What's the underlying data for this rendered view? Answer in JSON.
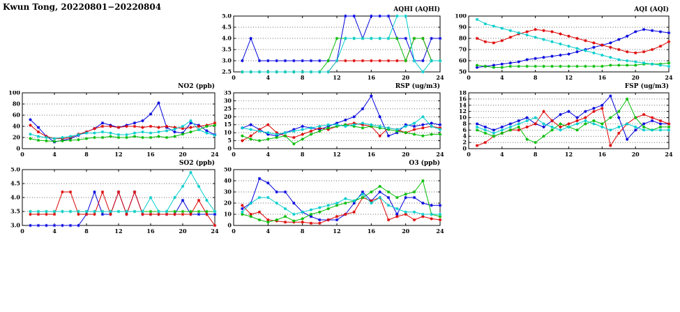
{
  "page_title": "Kwun Tong, 20220801−20220804",
  "hours": [
    1,
    2,
    3,
    4,
    5,
    6,
    7,
    8,
    9,
    10,
    11,
    12,
    13,
    14,
    15,
    16,
    17,
    18,
    19,
    20,
    21,
    22,
    23,
    24
  ],
  "series_colors": {
    "blue": "#0000dd",
    "red": "#dd0000",
    "green": "#00bb00",
    "cyan": "#00cccc"
  },
  "chart_data": [
    {
      "id": "aqhi",
      "type": "line",
      "title": "AQHI (AQHI)",
      "xlim": [
        0,
        24
      ],
      "xticks": [
        0,
        4,
        8,
        12,
        16,
        20,
        24
      ],
      "ylim": [
        2.5,
        5.0
      ],
      "yticks": [
        2.5,
        3.0,
        3.5,
        4.0,
        4.5,
        5.0
      ],
      "ytick_labels": [
        "2.5",
        "3.0",
        "3.5",
        "4.0",
        "4.5",
        "5.0"
      ],
      "grid": true,
      "legend": "none",
      "series": [
        {
          "name": "series-1",
          "color": "#0000dd",
          "values": [
            3,
            4,
            3,
            3,
            3,
            3,
            3,
            3,
            3,
            3,
            3,
            3,
            5,
            5,
            4,
            5,
            5,
            5,
            4,
            4,
            3,
            3,
            4,
            4
          ]
        },
        {
          "name": "series-2",
          "color": "#dd0000",
          "values": [
            2.5,
            2.5,
            2.5,
            2.5,
            2.5,
            2.5,
            2.5,
            2.5,
            2.5,
            2.5,
            2.5,
            3,
            3,
            3,
            3,
            3,
            3,
            3,
            3,
            3,
            4,
            4,
            3,
            3
          ]
        },
        {
          "name": "series-3",
          "color": "#00bb00",
          "values": [
            2.5,
            2.5,
            2.5,
            2.5,
            2.5,
            2.5,
            2.5,
            2.5,
            2.5,
            2.5,
            3,
            4,
            4,
            4,
            4,
            4,
            4,
            4,
            4,
            3,
            4,
            4,
            3,
            3
          ]
        },
        {
          "name": "series-4",
          "color": "#00cccc",
          "values": [
            2.5,
            2.5,
            2.5,
            2.5,
            2.5,
            2.5,
            2.5,
            2.5,
            2.5,
            2.5,
            2.5,
            3,
            4,
            4,
            4,
            4,
            4,
            4,
            5,
            5,
            3,
            2.5,
            3,
            3
          ]
        }
      ]
    },
    {
      "id": "aqi",
      "type": "line",
      "title": "AQI (AQI)",
      "xlim": [
        0,
        24
      ],
      "xticks": [
        0,
        4,
        8,
        12,
        16,
        20,
        24
      ],
      "ylim": [
        50,
        100
      ],
      "yticks": [
        50,
        60,
        70,
        80,
        90,
        100
      ],
      "ytick_labels": [
        "50",
        "60",
        "70",
        "80",
        "90",
        "100"
      ],
      "grid": true,
      "legend": "none",
      "series": [
        {
          "name": "series-1",
          "color": "#0000dd",
          "values": [
            54,
            55,
            56,
            57,
            58,
            59,
            61,
            62,
            63,
            64,
            65,
            66,
            68,
            70,
            72,
            74,
            76,
            79,
            82,
            86,
            88,
            87,
            86,
            85
          ]
        },
        {
          "name": "series-2",
          "color": "#dd0000",
          "values": [
            80,
            77,
            76,
            78,
            81,
            84,
            86,
            88,
            87,
            86,
            84,
            82,
            80,
            78,
            76,
            74,
            72,
            70,
            68,
            67,
            68,
            70,
            73,
            77
          ]
        },
        {
          "name": "series-3",
          "color": "#00bb00",
          "values": [
            56,
            55,
            54,
            54,
            55,
            55,
            55,
            55,
            55,
            55,
            55,
            55,
            55,
            55,
            55,
            55,
            56,
            56,
            56,
            56,
            57,
            57,
            57,
            58
          ]
        },
        {
          "name": "series-4",
          "color": "#00cccc",
          "values": [
            97,
            93,
            91,
            89,
            87,
            85,
            83,
            81,
            79,
            77,
            75,
            73,
            71,
            69,
            67,
            65,
            63,
            61,
            60,
            59,
            58,
            57,
            56,
            55
          ]
        }
      ]
    },
    {
      "id": "no2",
      "type": "line",
      "title": "NO2 (ppb)",
      "xlim": [
        0,
        24
      ],
      "xticks": [
        0,
        4,
        8,
        12,
        16,
        20,
        24
      ],
      "ylim": [
        0,
        100
      ],
      "yticks": [
        0,
        20,
        40,
        60,
        80,
        100
      ],
      "ytick_labels": [
        "0",
        "20",
        "40",
        "60",
        "80",
        "100"
      ],
      "grid": true,
      "legend": "none",
      "series": [
        {
          "name": "series-1",
          "color": "#0000dd",
          "values": [
            52,
            38,
            22,
            12,
            15,
            18,
            24,
            30,
            36,
            46,
            42,
            38,
            42,
            46,
            50,
            62,
            82,
            38,
            30,
            28,
            46,
            42,
            32,
            25
          ]
        },
        {
          "name": "series-2",
          "color": "#dd0000",
          "values": [
            42,
            30,
            22,
            18,
            18,
            20,
            26,
            30,
            36,
            40,
            40,
            38,
            40,
            40,
            38,
            40,
            38,
            40,
            38,
            36,
            38,
            40,
            42,
            46
          ]
        },
        {
          "name": "series-3",
          "color": "#00bb00",
          "values": [
            18,
            15,
            14,
            13,
            14,
            15,
            16,
            18,
            20,
            20,
            22,
            20,
            20,
            22,
            20,
            20,
            22,
            20,
            22,
            26,
            30,
            34,
            40,
            42
          ]
        },
        {
          "name": "series-4",
          "color": "#00cccc",
          "values": [
            26,
            22,
            20,
            18,
            20,
            22,
            25,
            28,
            28,
            30,
            28,
            25,
            25,
            28,
            30,
            28,
            30,
            32,
            35,
            40,
            50,
            34,
            28,
            24
          ]
        }
      ]
    },
    {
      "id": "rsp",
      "type": "line",
      "title": "RSP (ug/m3)",
      "xlim": [
        0,
        24
      ],
      "xticks": [
        0,
        4,
        8,
        12,
        16,
        20,
        24
      ],
      "ylim": [
        0,
        35
      ],
      "yticks": [
        0,
        5,
        10,
        15,
        20,
        25,
        30,
        35
      ],
      "ytick_labels": [
        "0",
        "5",
        "10",
        "15",
        "20",
        "25",
        "30",
        "35"
      ],
      "grid": true,
      "legend": "none",
      "series": [
        {
          "name": "series-1",
          "color": "#0000dd",
          "values": [
            13,
            15,
            12,
            9,
            8,
            10,
            12,
            14,
            13,
            12,
            14,
            16,
            18,
            20,
            25,
            33,
            20,
            8,
            10,
            15,
            14,
            15,
            16,
            15
          ]
        },
        {
          "name": "series-2",
          "color": "#dd0000",
          "values": [
            5,
            8,
            12,
            15,
            10,
            8,
            7,
            9,
            11,
            13,
            12,
            14,
            15,
            16,
            15,
            14,
            8,
            13,
            12,
            10,
            12,
            13,
            14,
            13
          ]
        },
        {
          "name": "series-3",
          "color": "#00bb00",
          "values": [
            8,
            6,
            5,
            6,
            7,
            8,
            3,
            6,
            9,
            11,
            13,
            14,
            15,
            14,
            13,
            14,
            13,
            12,
            11,
            10,
            9,
            8,
            9,
            9
          ]
        },
        {
          "name": "series-4",
          "color": "#00cccc",
          "values": [
            13,
            12,
            11,
            10,
            9,
            10,
            11,
            12,
            13,
            14,
            15,
            15,
            14,
            15,
            16,
            15,
            14,
            13,
            12,
            14,
            16,
            20,
            14,
            12
          ]
        }
      ]
    },
    {
      "id": "fsp",
      "type": "line",
      "title": "FSP (ug/m3)",
      "xlim": [
        0,
        24
      ],
      "xticks": [
        0,
        4,
        8,
        12,
        16,
        20,
        24
      ],
      "ylim": [
        0,
        18
      ],
      "yticks": [
        0,
        2,
        4,
        6,
        8,
        10,
        12,
        14,
        16,
        18
      ],
      "ytick_labels": [
        "0",
        "2",
        "4",
        "6",
        "8",
        "10",
        "12",
        "14",
        "16",
        "18"
      ],
      "grid": true,
      "legend": "none",
      "series": [
        {
          "name": "series-1",
          "color": "#0000dd",
          "values": [
            8,
            7,
            6,
            7,
            8,
            9,
            10,
            8,
            7,
            9,
            11,
            12,
            10,
            12,
            13,
            14,
            17,
            10,
            3,
            6,
            8,
            9,
            8,
            8
          ]
        },
        {
          "name": "series-2",
          "color": "#dd0000",
          "values": [
            1,
            2,
            4,
            5,
            6,
            6,
            7,
            8,
            12,
            9,
            7,
            8,
            9,
            10,
            12,
            13,
            1,
            5,
            8,
            10,
            11,
            10,
            9,
            8
          ]
        },
        {
          "name": "series-3",
          "color": "#00bb00",
          "values": [
            6,
            5,
            4,
            5,
            6,
            7,
            3,
            2,
            4,
            6,
            8,
            7,
            6,
            8,
            9,
            8,
            10,
            12,
            16,
            10,
            7,
            6,
            7,
            7
          ]
        },
        {
          "name": "series-4",
          "color": "#00cccc",
          "values": [
            7,
            6,
            5,
            6,
            7,
            8,
            9,
            10,
            8,
            7,
            6,
            7,
            8,
            9,
            8,
            7,
            6,
            7,
            8,
            7,
            6,
            6,
            6,
            6
          ]
        }
      ]
    },
    {
      "id": "so2",
      "type": "line",
      "title": "SO2 (ppb)",
      "xlim": [
        0,
        24
      ],
      "xticks": [
        0,
        4,
        8,
        12,
        16,
        20,
        24
      ],
      "ylim": [
        3.0,
        5.0
      ],
      "yticks": [
        3.0,
        3.5,
        4.0,
        4.5,
        5.0
      ],
      "ytick_labels": [
        "3.0",
        "3.5",
        "4.0",
        "4.5",
        "5.0"
      ],
      "grid": true,
      "legend": "none",
      "series": [
        {
          "name": "series-1",
          "color": "#0000dd",
          "values": [
            3.0,
            3.0,
            3.0,
            3.0,
            3.0,
            3.0,
            3.0,
            3.4,
            4.2,
            3.4,
            3.4,
            4.2,
            3.4,
            4.2,
            3.4,
            3.4,
            3.4,
            3.4,
            3.4,
            3.9,
            3.4,
            3.4,
            3.4,
            3.4
          ]
        },
        {
          "name": "series-2",
          "color": "#dd0000",
          "values": [
            3.4,
            3.4,
            3.4,
            3.4,
            4.2,
            4.2,
            3.4,
            3.4,
            3.4,
            4.2,
            3.4,
            4.2,
            3.4,
            4.2,
            3.4,
            3.4,
            3.4,
            3.4,
            3.4,
            3.4,
            3.4,
            3.9,
            3.4,
            3.0
          ]
        },
        {
          "name": "series-3",
          "color": "#00bb00",
          "values": [
            3.5,
            3.5,
            3.5,
            3.5,
            3.5,
            3.5,
            3.5,
            3.5,
            3.5,
            3.5,
            3.5,
            3.5,
            3.5,
            3.5,
            3.5,
            3.5,
            3.5,
            3.5,
            3.5,
            3.5,
            3.5,
            3.5,
            3.5,
            3.5
          ]
        },
        {
          "name": "series-4",
          "color": "#00cccc",
          "values": [
            3.5,
            3.5,
            3.5,
            3.5,
            3.5,
            3.5,
            3.5,
            3.5,
            3.5,
            3.5,
            3.5,
            3.5,
            3.5,
            3.5,
            3.5,
            4.0,
            3.5,
            3.5,
            4.0,
            4.4,
            4.9,
            4.4,
            3.9,
            3.5
          ]
        }
      ]
    },
    {
      "id": "o3",
      "type": "line",
      "title": "O3 (ppb)",
      "xlim": [
        0,
        24
      ],
      "xticks": [
        0,
        4,
        8,
        12,
        16,
        20,
        24
      ],
      "ylim": [
        0,
        50
      ],
      "yticks": [
        0,
        10,
        20,
        30,
        40,
        50
      ],
      "ytick_labels": [
        "0",
        "10",
        "20",
        "30",
        "40",
        "50"
      ],
      "grid": true,
      "legend": "none",
      "series": [
        {
          "name": "series-1",
          "color": "#0000dd",
          "values": [
            15,
            20,
            42,
            38,
            30,
            30,
            20,
            12,
            8,
            5,
            5,
            5,
            10,
            20,
            30,
            22,
            30,
            25,
            10,
            25,
            25,
            20,
            18,
            18
          ]
        },
        {
          "name": "series-2",
          "color": "#dd0000",
          "values": [
            18,
            10,
            12,
            5,
            4,
            3,
            3,
            3,
            2,
            2,
            5,
            8,
            10,
            12,
            25,
            22,
            25,
            5,
            8,
            10,
            5,
            8,
            6,
            5
          ]
        },
        {
          "name": "series-3",
          "color": "#00bb00",
          "values": [
            10,
            8,
            5,
            3,
            5,
            8,
            4,
            6,
            10,
            12,
            15,
            18,
            20,
            22,
            25,
            30,
            35,
            30,
            25,
            28,
            30,
            40,
            10,
            8
          ]
        },
        {
          "name": "series-4",
          "color": "#00cccc",
          "values": [
            12,
            20,
            25,
            25,
            20,
            15,
            10,
            12,
            14,
            16,
            18,
            20,
            24,
            22,
            28,
            20,
            25,
            18,
            15,
            12,
            12,
            10,
            10,
            10
          ]
        }
      ]
    }
  ]
}
